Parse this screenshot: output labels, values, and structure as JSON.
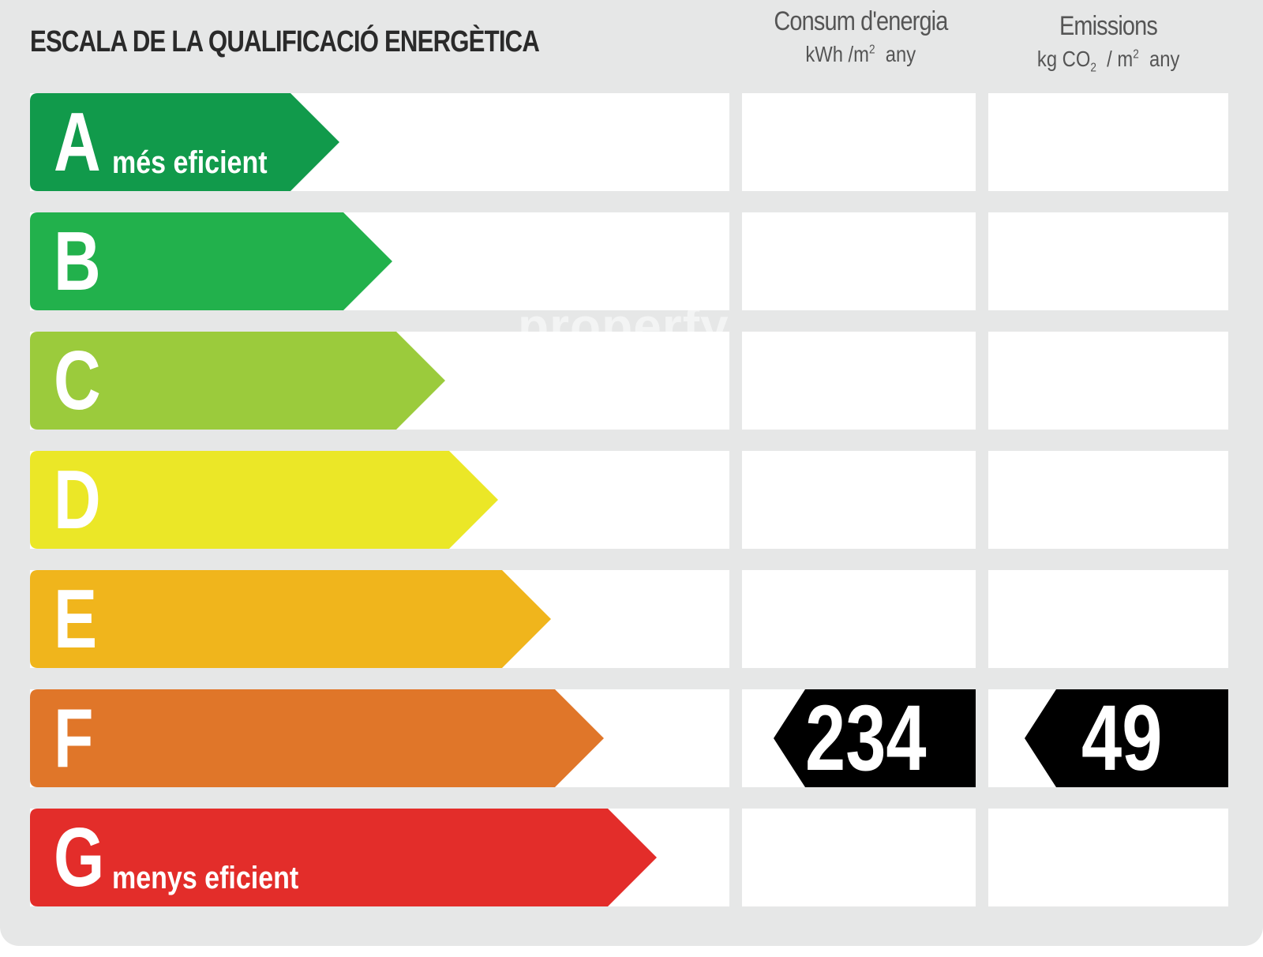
{
  "title": "ESCALA DE LA QUALIFICACIÓ ENERGÈTICA",
  "columns": {
    "consumption": {
      "label": "Consum d'energia",
      "unit_prefix": "kWh /m",
      "unit_exp": "2",
      "unit_suffix": "any"
    },
    "emissions": {
      "label": "Emissions",
      "unit_a": "kg CO",
      "unit_sub": "2",
      "unit_b": "/ m",
      "unit_exp": "2",
      "unit_suffix": "any"
    }
  },
  "scale": [
    {
      "letter": "A",
      "sub": "més eficient",
      "color": "#119a4b"
    },
    {
      "letter": "B",
      "sub": "",
      "color": "#22b14c"
    },
    {
      "letter": "C",
      "sub": "",
      "color": "#9bcb3c"
    },
    {
      "letter": "D",
      "sub": "",
      "color": "#ebe727"
    },
    {
      "letter": "E",
      "sub": "",
      "color": "#f0b51c"
    },
    {
      "letter": "F",
      "sub": "",
      "color": "#e07629"
    },
    {
      "letter": "G",
      "sub": "menys eficient",
      "color": "#e32d2a"
    }
  ],
  "rating": {
    "letter": "F",
    "consumption": "234",
    "emissions": "49"
  },
  "watermark": "properfy"
}
